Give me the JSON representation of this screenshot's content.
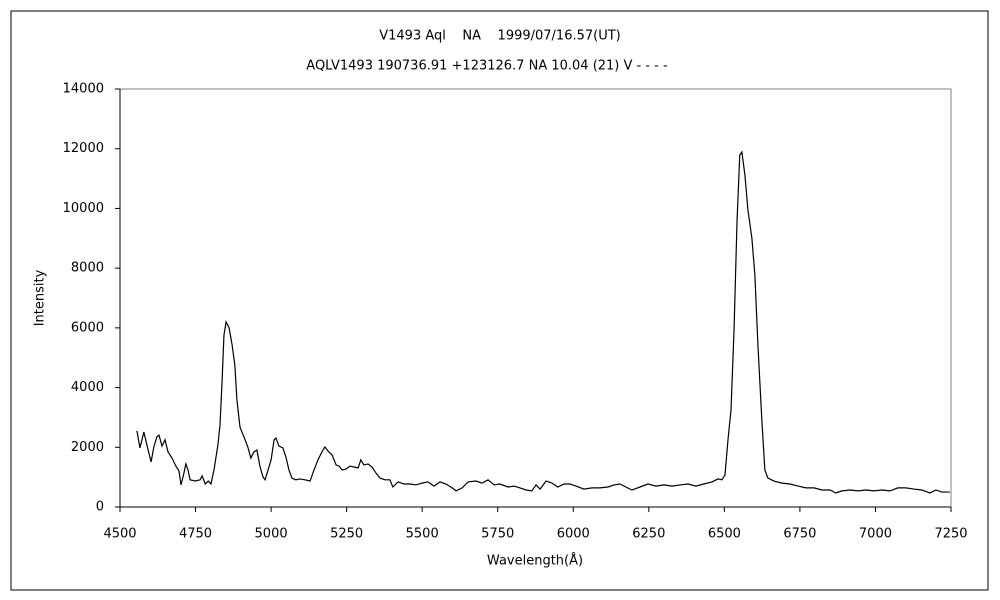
{
  "chart_data": {
    "type": "line",
    "title": "V1493 Aql    NA    1999/07/16.57(UT)",
    "subtitle": "AQLV1493 190736.91 +123126.7 NA 10.04 (21) V - - - -",
    "x_label": "Wavelength(Å)",
    "y_label": "Intensity",
    "color": "#000000",
    "xlim": [
      4500,
      7250
    ],
    "ylim": [
      0,
      14000
    ],
    "xticks": [
      4500,
      4750,
      5000,
      5250,
      5500,
      5750,
      6000,
      6250,
      6500,
      6750,
      7000,
      7250
    ],
    "yticks": [
      0,
      2000,
      4000,
      6000,
      8000,
      10000,
      12000,
      14000
    ],
    "x": [
      4556,
      4566,
      4579,
      4589,
      4603,
      4612,
      4622,
      4629,
      4639,
      4649,
      4659,
      4672,
      4685,
      4695,
      4702,
      4711,
      4718,
      4725,
      4732,
      4749,
      4765,
      4772,
      4782,
      4792,
      4801,
      4811,
      4824,
      4831,
      4838,
      4844,
      4851,
      4861,
      4871,
      4880,
      4887,
      4897,
      4910,
      4923,
      4933,
      4943,
      4953,
      4963,
      4973,
      4980,
      4990,
      5000,
      5010,
      5016,
      5026,
      5039,
      5049,
      5059,
      5069,
      5082,
      5096,
      5112,
      5129,
      5142,
      5155,
      5168,
      5178,
      5188,
      5202,
      5215,
      5225,
      5235,
      5248,
      5261,
      5274,
      5288,
      5297,
      5307,
      5321,
      5334,
      5347,
      5360,
      5377,
      5393,
      5403,
      5420,
      5440,
      5460,
      5479,
      5499,
      5519,
      5539,
      5559,
      5579,
      5599,
      5612,
      5632,
      5652,
      5678,
      5698,
      5718,
      5738,
      5757,
      5784,
      5804,
      5824,
      5844,
      5863,
      5877,
      5890,
      5910,
      5930,
      5949,
      5969,
      5989,
      6009,
      6035,
      6062,
      6088,
      6115,
      6135,
      6154,
      6174,
      6194,
      6221,
      6247,
      6274,
      6300,
      6327,
      6353,
      6380,
      6406,
      6432,
      6459,
      6479,
      6492,
      6502,
      6512,
      6522,
      6532,
      6542,
      6551,
      6558,
      6568,
      6578,
      6591,
      6601,
      6611,
      6624,
      6634,
      6644,
      6664,
      6691,
      6717,
      6744,
      6770,
      6797,
      6823,
      6850,
      6869,
      6889,
      6916,
      6942,
      6969,
      6995,
      7021,
      7048,
      7074,
      7101,
      7127,
      7154,
      7180,
      7200,
      7220,
      7246
    ],
    "values": [
      2550,
      1980,
      2510,
      2080,
      1510,
      2010,
      2350,
      2410,
      2040,
      2250,
      1840,
      1640,
      1370,
      1210,
      740,
      1110,
      1440,
      1240,
      910,
      870,
      910,
      1040,
      770,
      870,
      770,
      1240,
      2080,
      2750,
      4260,
      5760,
      6200,
      6000,
      5430,
      4760,
      3580,
      2680,
      2350,
      2010,
      1640,
      1840,
      1910,
      1370,
      1010,
      910,
      1240,
      1580,
      2250,
      2310,
      2040,
      1980,
      1680,
      1240,
      970,
      910,
      940,
      910,
      870,
      1240,
      1580,
      1840,
      2010,
      1880,
      1740,
      1410,
      1370,
      1240,
      1270,
      1370,
      1340,
      1310,
      1580,
      1410,
      1440,
      1340,
      1140,
      970,
      910,
      910,
      670,
      840,
      770,
      770,
      740,
      800,
      840,
      700,
      840,
      770,
      640,
      540,
      640,
      840,
      870,
      800,
      910,
      740,
      770,
      670,
      700,
      640,
      570,
      540,
      740,
      600,
      870,
      800,
      670,
      770,
      770,
      700,
      600,
      640,
      640,
      670,
      740,
      770,
      670,
      570,
      670,
      770,
      700,
      740,
      700,
      740,
      770,
      700,
      770,
      840,
      940,
      910,
      1070,
      2250,
      3250,
      5930,
      9610,
      11790,
      11890,
      11120,
      9950,
      9010,
      7770,
      5430,
      2920,
      1240,
      970,
      870,
      800,
      770,
      700,
      640,
      640,
      570,
      570,
      470,
      540,
      570,
      540,
      570,
      540,
      570,
      540,
      640,
      640,
      600,
      570,
      470,
      570,
      500,
      500
    ]
  }
}
